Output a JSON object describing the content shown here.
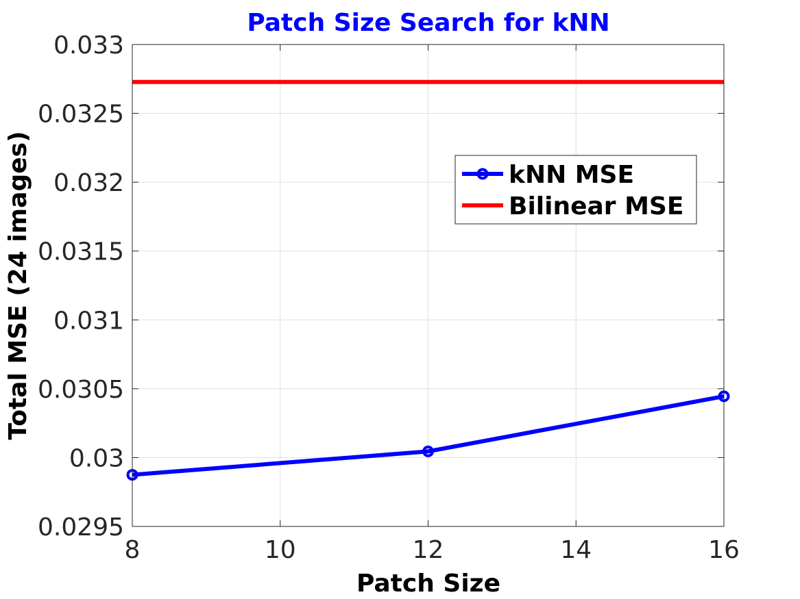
{
  "chart_data": {
    "type": "line",
    "title": "Patch Size Search for kNN",
    "xlabel": "Patch Size",
    "ylabel": "Total MSE (24 images)",
    "xlim": [
      8,
      16
    ],
    "ylim": [
      0.0295,
      0.033
    ],
    "x_ticks": [
      8,
      10,
      12,
      14,
      16
    ],
    "x_tick_labels": [
      "8",
      "10",
      "12",
      "14",
      "16"
    ],
    "y_ticks": [
      0.0295,
      0.03,
      0.0305,
      0.031,
      0.0315,
      0.032,
      0.0325,
      0.033
    ],
    "y_tick_labels": [
      "0.0295",
      "0.03",
      "0.0305",
      "0.031",
      "0.0315",
      "0.032",
      "0.0325",
      "0.033"
    ],
    "grid": true,
    "legend_position": "top-right",
    "series": [
      {
        "name": "kNN MSE",
        "x": [
          8,
          12,
          16
        ],
        "y": [
          0.029875,
          0.030045,
          0.030445
        ],
        "color": "#0000ff",
        "marker": "circle"
      },
      {
        "name": "Bilinear MSE",
        "x": [
          8,
          16
        ],
        "y": [
          0.032728,
          0.032728
        ],
        "color": "#ff0000",
        "marker": "none"
      }
    ],
    "title_color": "#0000ff"
  }
}
